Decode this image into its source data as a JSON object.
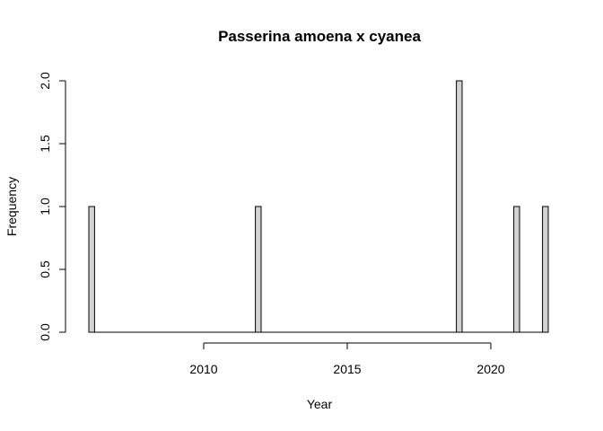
{
  "chart_data": {
    "type": "bar",
    "title": "Passerina amoena x cyanea",
    "xlabel": "Year",
    "ylabel": "Frequency",
    "xlim": [
      2006,
      2022
    ],
    "ylim": [
      0,
      2
    ],
    "bin_width": 0.2,
    "bars": [
      {
        "x0": 2006.0,
        "value": 1
      },
      {
        "x0": 2011.8,
        "value": 1
      },
      {
        "x0": 2018.8,
        "value": 2
      },
      {
        "x0": 2020.8,
        "value": 1
      },
      {
        "x0": 2021.8,
        "value": 1
      }
    ],
    "x_ticks": [
      2010,
      2015,
      2020
    ],
    "x_tick_labels": [
      "2010",
      "2015",
      "2020"
    ],
    "y_ticks": [
      0,
      0.5,
      1,
      1.5,
      2
    ],
    "y_tick_labels": [
      "0.0",
      "0.5",
      "1.0",
      "1.5",
      "2.0"
    ],
    "bar_fill": "#d3d3d3",
    "bar_stroke": "#000000",
    "grid": false,
    "legend": "none"
  }
}
